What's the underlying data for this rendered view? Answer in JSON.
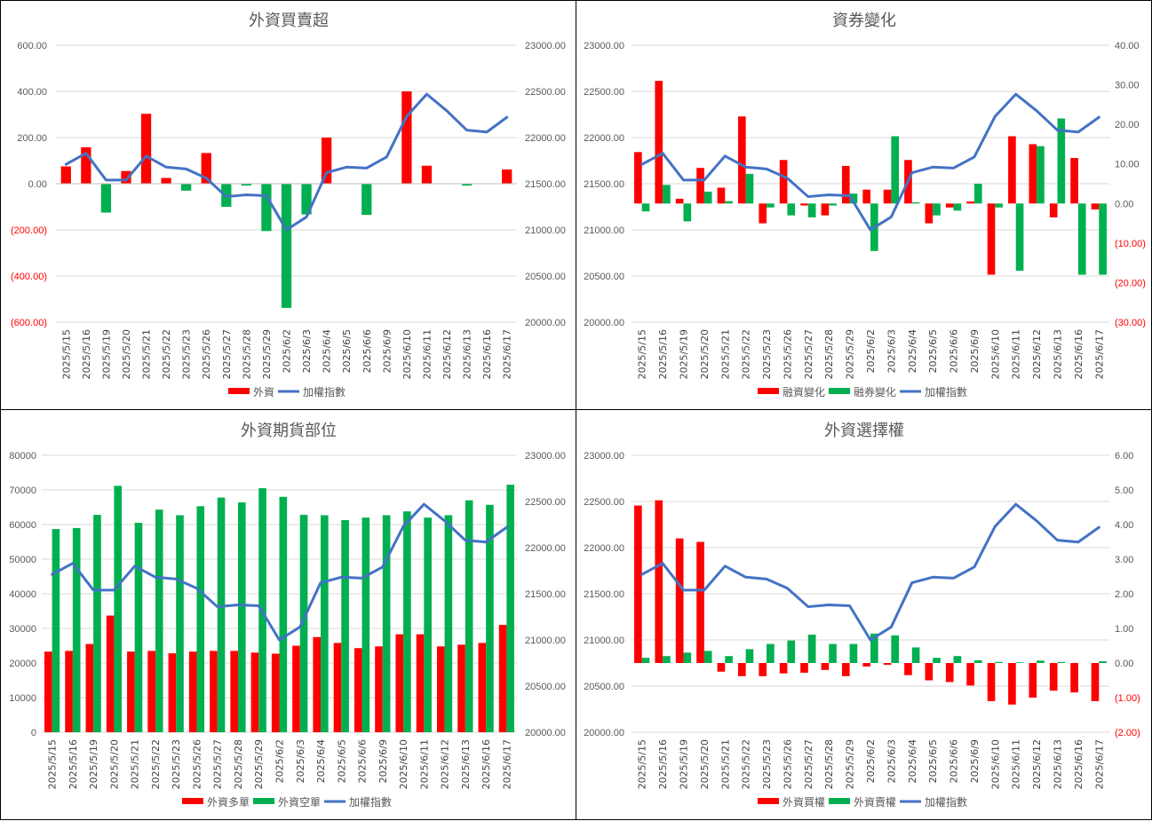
{
  "dates": [
    "2025/5/15",
    "2025/5/16",
    "2025/5/19",
    "2025/5/20",
    "2025/5/21",
    "2025/5/22",
    "2025/5/23",
    "2025/5/26",
    "2025/5/27",
    "2025/5/28",
    "2025/5/29",
    "2025/6/2",
    "2025/6/3",
    "2025/6/4",
    "2025/6/5",
    "2025/6/6",
    "2025/6/9",
    "2025/6/10",
    "2025/6/11",
    "2025/6/12",
    "2025/6/13",
    "2025/6/16",
    "2025/6/17"
  ],
  "colors": {
    "red": "#ff0000",
    "green": "#00b050",
    "blue": "#4472c4",
    "grid": "#d9d9d9",
    "axis_text": "#595959",
    "neg_text": "#ff0000"
  },
  "chart_data": [
    {
      "type": "bar",
      "title": "外資買賣超",
      "y_left": {
        "min": -600,
        "max": 600,
        "step": 200,
        "ticks": [
          "(600.00)",
          "(400.00)",
          "(200.00)",
          "0.00",
          "200.00",
          "400.00",
          "600.00"
        ]
      },
      "y_right": {
        "min": 20000,
        "max": 23000,
        "step": 500,
        "ticks": [
          "20000.00",
          "20500.00",
          "21000.00",
          "21500.00",
          "22000.00",
          "22500.00",
          "23000.00"
        ]
      },
      "series": [
        {
          "name": "外資",
          "axis": "left",
          "kind": "bar",
          "color_rule": "sign",
          "values": [
            75,
            158,
            -125,
            55,
            303,
            25,
            -30,
            133,
            -100,
            -8,
            -205,
            -538,
            -133,
            200,
            0,
            -135,
            0,
            400,
            78,
            0,
            -8,
            0,
            62
          ]
        },
        {
          "name": "加權指數",
          "axis": "right",
          "kind": "line",
          "color": "#4472c4",
          "values": [
            21710,
            21830,
            21540,
            21540,
            21800,
            21680,
            21660,
            21560,
            21360,
            21380,
            21370,
            21000,
            21140,
            21620,
            21680,
            21670,
            21790,
            22230,
            22470,
            22290,
            22080,
            22060,
            22220
          ]
        }
      ],
      "legend": [
        {
          "label": "外資",
          "kind": "bar",
          "color": "#ff0000"
        },
        {
          "label": "加權指數",
          "kind": "line",
          "color": "#4472c4"
        }
      ]
    },
    {
      "type": "bar",
      "title": "資券變化",
      "y_left": {
        "min": 20000,
        "max": 23000,
        "step": 500,
        "ticks": [
          "20000.00",
          "20500.00",
          "21000.00",
          "21500.00",
          "22000.00",
          "22500.00",
          "23000.00"
        ]
      },
      "y_right": {
        "min": -30,
        "max": 40,
        "step": 10,
        "ticks": [
          "(30.00)",
          "(20.00)",
          "(10.00)",
          "0.00",
          "10.00",
          "20.00",
          "30.00",
          "40.00"
        ]
      },
      "series": [
        {
          "name": "融資變化",
          "axis": "right",
          "kind": "bar",
          "color": "#ff0000",
          "values": [
            13,
            31,
            1.2,
            9,
            4,
            22,
            -5,
            11,
            -0.5,
            -3,
            9.5,
            3.5,
            3.5,
            11,
            -5,
            -1,
            0.5,
            -18,
            17,
            15,
            -3.5,
            11.5,
            -1.5
          ]
        },
        {
          "name": "融券變化",
          "axis": "right",
          "kind": "bar",
          "color": "#00b050",
          "values": [
            -2,
            4.7,
            -4.5,
            3,
            0.6,
            7.5,
            -1,
            -3,
            -3.5,
            -0.5,
            2.5,
            -12,
            17,
            0.3,
            -3,
            -1.8,
            5,
            -1,
            -17,
            14.5,
            21.5,
            -18,
            -18
          ]
        },
        {
          "name": "加權指數",
          "axis": "left",
          "kind": "line",
          "color": "#4472c4",
          "values": [
            21710,
            21830,
            21540,
            21540,
            21800,
            21680,
            21660,
            21560,
            21360,
            21380,
            21370,
            21000,
            21140,
            21620,
            21680,
            21670,
            21790,
            22230,
            22470,
            22290,
            22080,
            22060,
            22220
          ]
        }
      ],
      "legend": [
        {
          "label": "融資變化",
          "kind": "bar",
          "color": "#ff0000"
        },
        {
          "label": "融券變化",
          "kind": "bar",
          "color": "#00b050"
        },
        {
          "label": "加權指數",
          "kind": "line",
          "color": "#4472c4"
        }
      ]
    },
    {
      "type": "bar",
      "title": "外資期貨部位",
      "y_left": {
        "min": 0,
        "max": 80000,
        "step": 10000,
        "ticks": [
          "0",
          "10000",
          "20000",
          "30000",
          "40000",
          "50000",
          "60000",
          "70000",
          "80000"
        ]
      },
      "y_right": {
        "min": 20000,
        "max": 23000,
        "step": 500,
        "ticks": [
          "20000.00",
          "20500.00",
          "21000.00",
          "21500.00",
          "22000.00",
          "22500.00",
          "23000.00"
        ]
      },
      "series": [
        {
          "name": "外資多單",
          "axis": "left",
          "kind": "bar",
          "color": "#ff0000",
          "values": [
            23300,
            23500,
            25500,
            33700,
            23300,
            23500,
            22800,
            23300,
            23500,
            23500,
            23000,
            22700,
            25000,
            27500,
            25800,
            24300,
            24800,
            28300,
            28300,
            24800,
            25300,
            25800,
            31000
          ]
        },
        {
          "name": "外資空單",
          "axis": "left",
          "kind": "bar",
          "color": "#00b050",
          "values": [
            58700,
            59000,
            62800,
            71200,
            60500,
            64300,
            62700,
            65300,
            67800,
            66400,
            70500,
            68000,
            62800,
            62700,
            61300,
            62000,
            62700,
            63800,
            62000,
            62700,
            67000,
            65700,
            71500
          ]
        },
        {
          "name": "加權指數",
          "axis": "right",
          "kind": "line",
          "color": "#4472c4",
          "values": [
            21710,
            21830,
            21540,
            21540,
            21800,
            21680,
            21660,
            21560,
            21360,
            21380,
            21370,
            21000,
            21140,
            21620,
            21680,
            21670,
            21790,
            22230,
            22470,
            22290,
            22080,
            22060,
            22220
          ]
        }
      ],
      "legend": [
        {
          "label": "外資多單",
          "kind": "bar",
          "color": "#ff0000"
        },
        {
          "label": "外資空單",
          "kind": "bar",
          "color": "#00b050"
        },
        {
          "label": "加權指數",
          "kind": "line",
          "color": "#4472c4"
        }
      ]
    },
    {
      "type": "bar",
      "title": "外資選擇權",
      "y_left": {
        "min": 20000,
        "max": 23000,
        "step": 500,
        "ticks": [
          "20000.00",
          "20500.00",
          "21000.00",
          "21500.00",
          "22000.00",
          "22500.00",
          "23000.00"
        ]
      },
      "y_right": {
        "min": -2,
        "max": 6,
        "step": 1,
        "ticks": [
          "(2.00)",
          "(1.00)",
          "0.00",
          "1.00",
          "2.00",
          "3.00",
          "4.00",
          "5.00",
          "6.00"
        ]
      },
      "series": [
        {
          "name": "外資買權",
          "axis": "right",
          "kind": "bar",
          "color": "#ff0000",
          "values": [
            4.55,
            4.7,
            3.6,
            3.5,
            -0.25,
            -0.38,
            -0.38,
            -0.3,
            -0.28,
            -0.2,
            -0.38,
            -0.1,
            -0.05,
            -0.35,
            -0.5,
            -0.55,
            -0.65,
            -1.1,
            -1.2,
            -1.0,
            -0.8,
            -0.85,
            -1.1
          ]
        },
        {
          "name": "外資賣權",
          "axis": "right",
          "kind": "bar",
          "color": "#00b050",
          "values": [
            0.15,
            0.2,
            0.3,
            0.35,
            0.2,
            0.4,
            0.55,
            0.65,
            0.82,
            0.55,
            0.55,
            0.85,
            0.8,
            0.45,
            0.15,
            0.2,
            0.08,
            0.03,
            0.02,
            0.07,
            0.03,
            0.0,
            0.05
          ]
        },
        {
          "name": "加權指數",
          "axis": "left",
          "kind": "line",
          "color": "#4472c4",
          "values": [
            21710,
            21830,
            21540,
            21540,
            21800,
            21680,
            21660,
            21560,
            21360,
            21380,
            21370,
            21000,
            21140,
            21620,
            21680,
            21670,
            21790,
            22230,
            22470,
            22290,
            22080,
            22060,
            22220
          ]
        }
      ],
      "legend": [
        {
          "label": "外資買權",
          "kind": "bar",
          "color": "#ff0000"
        },
        {
          "label": "外資賣權",
          "kind": "bar",
          "color": "#00b050"
        },
        {
          "label": "加權指數",
          "kind": "line",
          "color": "#4472c4"
        }
      ]
    }
  ]
}
